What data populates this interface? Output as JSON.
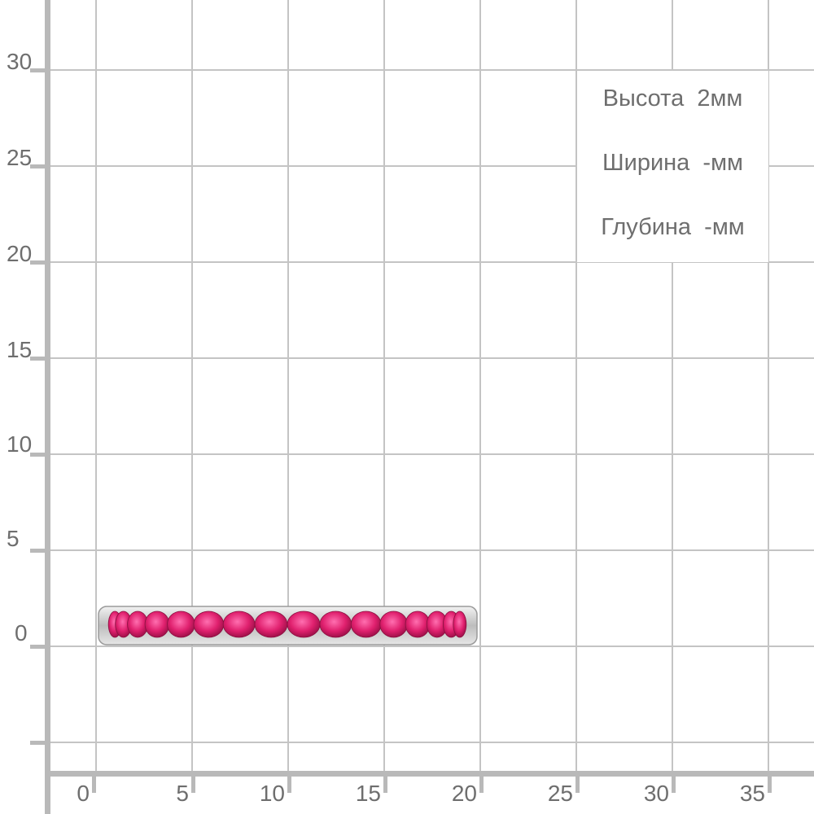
{
  "y_axis": {
    "ticks": [
      "30",
      "25",
      "20",
      "15",
      "10",
      "5",
      "0"
    ]
  },
  "x_axis": {
    "ticks": [
      "0",
      "5",
      "10",
      "15",
      "20",
      "25",
      "30",
      "35"
    ]
  },
  "dimensions": {
    "height": "Высота  2мм",
    "width": "Ширина  -мм",
    "depth": "Глубина  -мм"
  },
  "product": {
    "stone_count_visible": 16,
    "stone_color": "#e0206e",
    "metal_color": "#d6d6d6"
  },
  "colors": {
    "grid": "#c4c4c4",
    "axis": "#b9b9b9",
    "label": "#6e6e6e"
  }
}
